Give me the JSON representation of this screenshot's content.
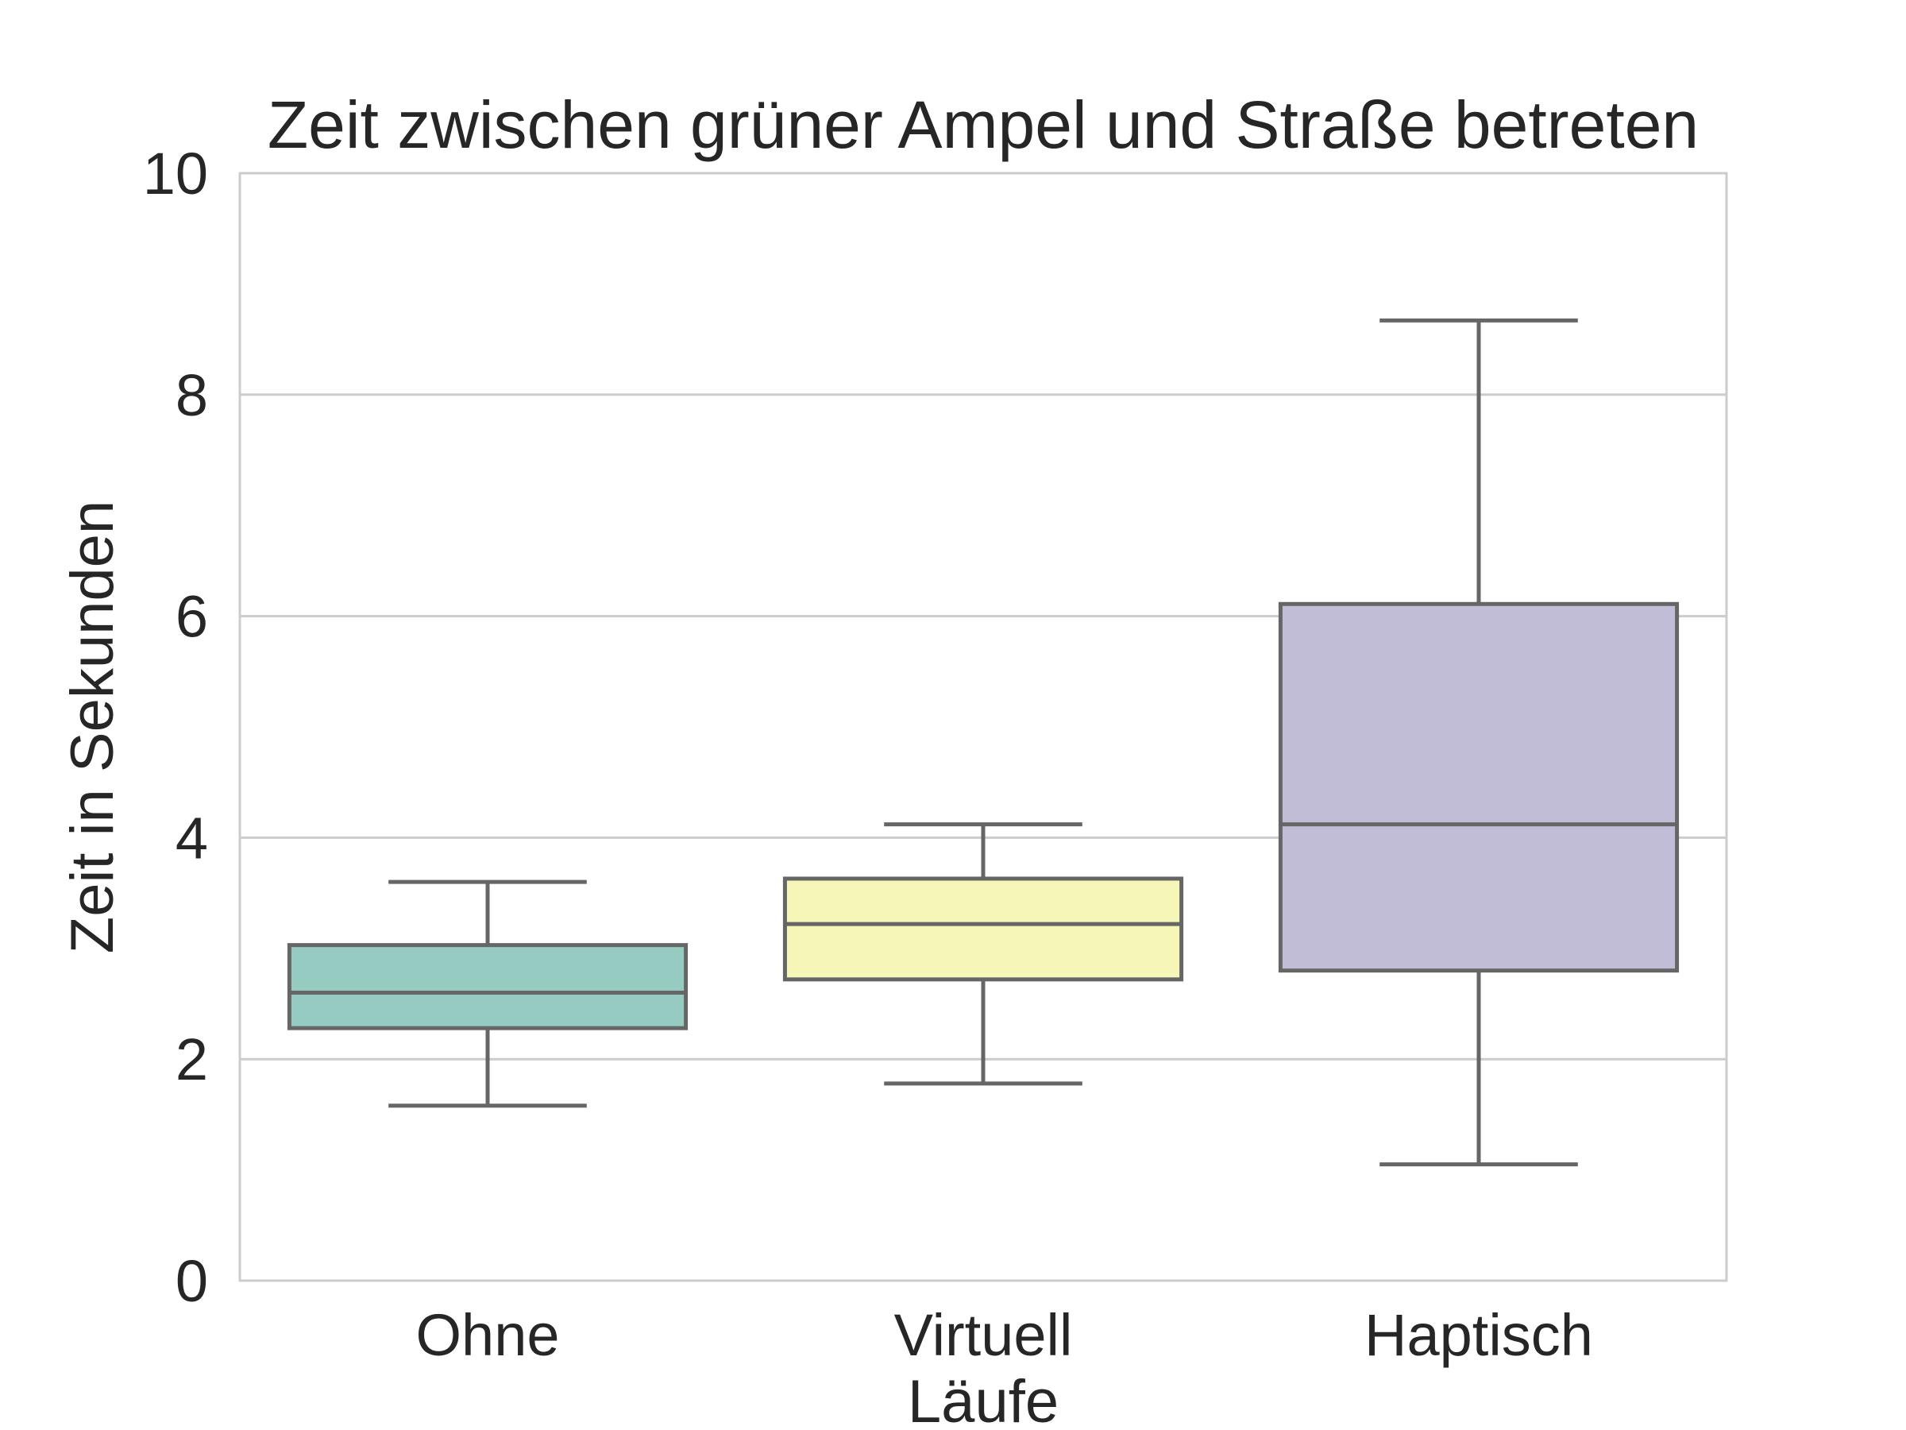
{
  "chart_data": {
    "type": "box",
    "title": "Zeit zwischen grüner Ampel und Straße betreten",
    "xlabel": "Läufe",
    "ylabel": "Zeit in Sekunden",
    "ylim": [
      0,
      10
    ],
    "yticks": [
      0,
      2,
      4,
      6,
      8,
      10
    ],
    "grid": "horizontal",
    "categories": [
      "Ohne",
      "Virtuell",
      "Haptisch"
    ],
    "boxes": [
      {
        "category": "Ohne",
        "whisker_low": 1.58,
        "q1": 2.28,
        "median": 2.6,
        "q3": 3.03,
        "whisker_high": 3.6,
        "color": "#96cbc1"
      },
      {
        "category": "Virtuell",
        "whisker_low": 1.78,
        "q1": 2.72,
        "median": 3.22,
        "q3": 3.63,
        "whisker_high": 4.12,
        "color": "#f6f6b9"
      },
      {
        "category": "Haptisch",
        "whisker_low": 1.05,
        "q1": 2.8,
        "median": 4.12,
        "q3": 6.11,
        "whisker_high": 8.67,
        "color": "#c1bdd6"
      }
    ]
  },
  "colors": {
    "grid": "#cccccc",
    "frame": "#cccccc",
    "box_edge": "#666666",
    "text": "#262626"
  }
}
